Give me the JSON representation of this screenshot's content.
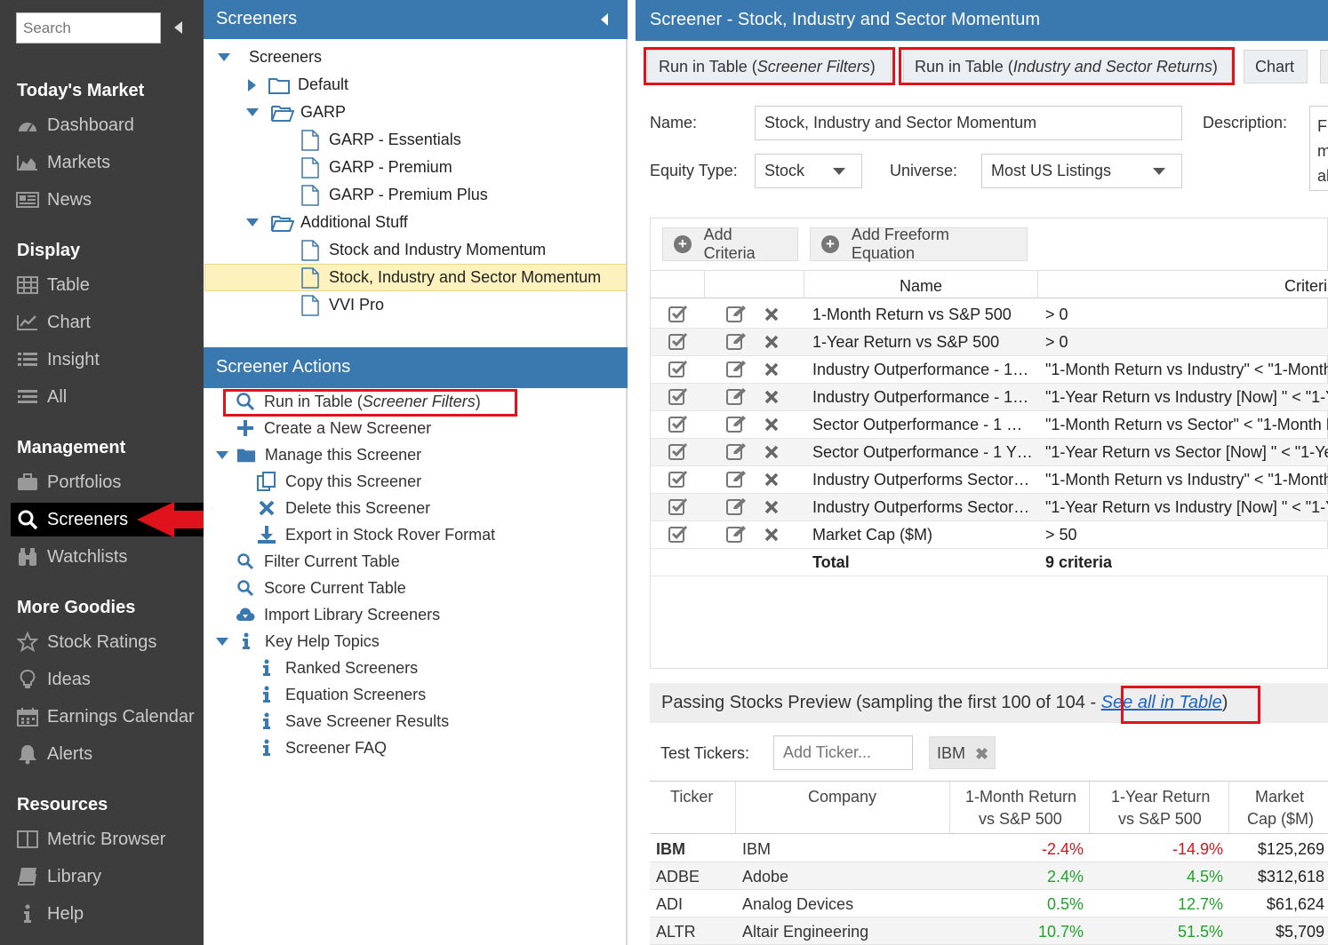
{
  "sidebar": {
    "search_placeholder": "Search",
    "sections": {
      "todays_market": "Today's Market",
      "display": "Display",
      "management": "Management",
      "more_goodies": "More Goodies",
      "resources": "Resources"
    },
    "items": {
      "dashboard": "Dashboard",
      "markets": "Markets",
      "news": "News",
      "table": "Table",
      "chart": "Chart",
      "insight": "Insight",
      "all": "All",
      "portfolios": "Portfolios",
      "screeners": "Screeners",
      "watchlists": "Watchlists",
      "stock_ratings": "Stock Ratings",
      "ideas": "Ideas",
      "earnings_calendar": "Earnings Calendar",
      "alerts": "Alerts",
      "metric_browser": "Metric Browser",
      "library": "Library",
      "help": "Help"
    }
  },
  "tree": {
    "title": "Screeners",
    "root": "Screeners",
    "default": "Default",
    "garp": "GARP",
    "garp_essentials": "GARP - Essentials",
    "garp_premium": "GARP - Premium",
    "garp_premium_plus": "GARP - Premium Plus",
    "additional_stuff": "Additional Stuff",
    "stock_industry_momentum": "Stock and Industry Momentum",
    "stock_industry_sector_momentum": "Stock, Industry and Sector Momentum",
    "vvi_pro": "VVI Pro"
  },
  "actions": {
    "title": "Screener Actions",
    "run_in_table": "Run in Table (",
    "run_in_table_italic": "Screener Filters",
    "run_in_table_end": ")",
    "create": "Create a New Screener",
    "manage": "Manage this Screener",
    "copy": "Copy this Screener",
    "delete": "Delete this Screener",
    "export": "Export in Stock Rover Format",
    "filter": "Filter Current Table",
    "score": "Score Current Table",
    "import": "Import Library Screeners",
    "key_help": "Key Help Topics",
    "ranked": "Ranked Screeners",
    "equation": "Equation Screeners",
    "save_results": "Save Screener Results",
    "faq": "Screener FAQ"
  },
  "main": {
    "title": "Screener - Stock, Industry and Sector Momentum",
    "btn_run_filters": "Run in Table (",
    "btn_run_filters_italic": "Screener Filters",
    "btn_run_returns": "Run in Table (",
    "btn_run_returns_italic": "Industry and Sector Returns",
    "paren_close": ")",
    "btn_chart": "Chart",
    "name_label": "Name:",
    "name_value": "Stock, Industry and Sector Momentum",
    "description_label": "Description:",
    "description_fragment": [
      "F",
      "m",
      "al"
    ],
    "equity_type_label": "Equity Type:",
    "equity_type_value": "Stock",
    "universe_label": "Universe:",
    "universe_value": "Most US Listings",
    "add_criteria": "Add Criteria",
    "add_freeform": "Add Freeform Equation",
    "col_name": "Name",
    "col_criteria": "Criteria",
    "criteria": [
      {
        "name": "1-Month Return vs S&P 500",
        "criteria": "> 0"
      },
      {
        "name": "1-Year Return vs S&P 500",
        "criteria": "> 0"
      },
      {
        "name": "Industry Outperformance - 1…",
        "criteria": "\"1-Month Return vs Industry\" < \"1-Month"
      },
      {
        "name": "Industry Outperformance - 1…",
        "criteria": "\"1-Year Return vs Industry [Now] \" < \"1-Y"
      },
      {
        "name": "Sector Outperformance - 1 …",
        "criteria": "\"1-Month Return vs Sector\" < \"1-Month R"
      },
      {
        "name": "Sector Outperformance - 1 Y…",
        "criteria": "\"1-Year Return vs Sector [Now] \" < \"1-Ye"
      },
      {
        "name": "Industry Outperforms Sector…",
        "criteria": "\"1-Month Return vs Industry\" < \"1-Month"
      },
      {
        "name": "Industry Outperforms Sector…",
        "criteria": "\"1-Year Return vs Industry [Now] \" < \"1-Y"
      },
      {
        "name": "Market Cap ($M)",
        "criteria": "> 50"
      }
    ],
    "total_label": "Total",
    "total_value": "9 criteria",
    "preview_text": "Passing Stocks Preview (sampling the first 100 of 104 - ",
    "see_all": "See all in Table",
    "test_tickers_label": "Test Tickers:",
    "add_ticker_placeholder": "Add Ticker...",
    "ticker_chip": "IBM",
    "table_headers": {
      "ticker": "Ticker",
      "company": "Company",
      "ret1m_l1": "1-Month Return",
      "ret1m_l2": "vs S&P 500",
      "ret1y_l1": "1-Year Return",
      "ret1y_l2": "vs S&P 500",
      "mcap_l1": "Market",
      "mcap_l2": "Cap ($M)"
    },
    "stocks": [
      {
        "ticker": "IBM",
        "company": "IBM",
        "ret1m": "-2.4%",
        "ret1y": "-14.9%",
        "mcap": "$125,269"
      },
      {
        "ticker": "ADBE",
        "company": "Adobe",
        "ret1m": "2.4%",
        "ret1y": "4.5%",
        "mcap": "$312,618"
      },
      {
        "ticker": "ADI",
        "company": "Analog Devices",
        "ret1m": "0.5%",
        "ret1y": "12.7%",
        "mcap": "$61,624"
      },
      {
        "ticker": "ALTR",
        "company": "Altair Engineering",
        "ret1m": "10.7%",
        "ret1y": "51.5%",
        "mcap": "$5,709"
      }
    ],
    "colors": {
      "negative": "#d9141a",
      "positive": "#23a12b",
      "accent": "#3a78b0",
      "highlight_box": "#e0121b"
    }
  }
}
